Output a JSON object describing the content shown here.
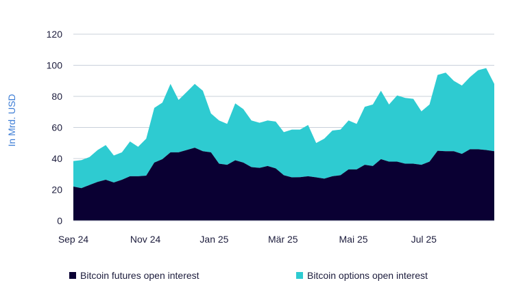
{
  "chart_data": {
    "type": "area",
    "stacked": true,
    "title": "",
    "xlabel": "",
    "ylabel": "In Mrd. USD",
    "ylim": [
      0,
      120
    ],
    "yticks": [
      0,
      20,
      40,
      60,
      80,
      100,
      120
    ],
    "xlim": [
      0,
      52
    ],
    "x_unit": "week index from start of Sep 2024",
    "xticks": [
      {
        "label": "Sep 24",
        "x": 0
      },
      {
        "label": "Nov 24",
        "x": 8.9
      },
      {
        "label": "Jan 25",
        "x": 17.4
      },
      {
        "label": "Mär 25",
        "x": 25.9
      },
      {
        "label": "Mai 25",
        "x": 34.6
      },
      {
        "label": "Jul 25",
        "x": 43.3
      }
    ],
    "grid": true,
    "legend_position": "bottom",
    "series": [
      {
        "name": "Bitcoin futures open interest",
        "color": "#0a0033",
        "values": [
          22,
          21,
          23,
          25,
          26.4,
          24.6,
          26.4,
          28.6,
          28.6,
          29,
          37.4,
          39.6,
          44,
          44,
          45.5,
          47,
          44.7,
          44,
          36.7,
          36,
          38.9,
          37.4,
          34.5,
          34,
          35.2,
          33.7,
          29.3,
          27.9,
          28,
          28.6,
          27.9,
          27.1,
          28.6,
          29.3,
          33,
          33,
          36,
          35.2,
          39.6,
          38,
          38,
          36.7,
          36.7,
          36,
          38,
          45,
          44.7,
          44.7,
          43,
          46,
          46,
          45.5,
          44.7
        ]
      },
      {
        "name": "Bitcoin options open interest",
        "color": "#2ecbd1",
        "values": [
          16.4,
          18,
          18,
          20.5,
          22.3,
          17.4,
          17.6,
          22.4,
          19,
          23.8,
          35.2,
          36.4,
          44,
          33.7,
          37.3,
          41,
          38.9,
          25,
          27.8,
          26.3,
          36.6,
          34.4,
          30,
          29,
          29.3,
          30.1,
          27.7,
          30.7,
          30.6,
          33,
          22.1,
          25.7,
          29.4,
          29.3,
          31.5,
          29.3,
          37.3,
          39.6,
          44,
          36.8,
          42.6,
          42.3,
          41.7,
          34.4,
          36.8,
          48.8,
          50.6,
          45.3,
          44,
          46.4,
          50.8,
          52.7,
          43.3
        ]
      }
    ]
  }
}
